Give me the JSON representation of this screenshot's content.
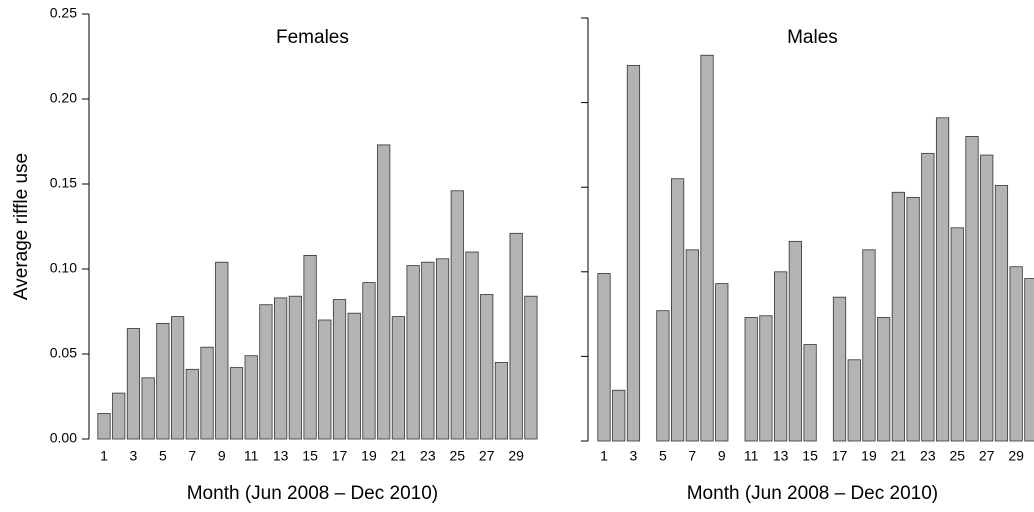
{
  "chart_data": [
    {
      "type": "bar",
      "title": "Females",
      "ylabel": "Average riffle use",
      "xlabel": "Month (Jun 2008 – Dec 2010)",
      "categories": [
        "1",
        null,
        "3",
        null,
        "5",
        null,
        "7",
        null,
        "9",
        null,
        "11",
        null,
        "13",
        null,
        "15",
        null,
        "17",
        null,
        "19",
        null,
        "21",
        null,
        "23",
        null,
        "25",
        null,
        "27",
        null,
        "29",
        null
      ],
      "values": [
        0.015,
        0.027,
        0.065,
        0.036,
        0.068,
        0.072,
        0.041,
        0.054,
        0.104,
        0.042,
        0.049,
        0.079,
        0.083,
        0.084,
        0.108,
        0.07,
        0.082,
        0.074,
        0.092,
        0.173,
        0.072,
        0.102,
        0.104,
        0.106,
        0.146,
        0.11,
        0.085,
        0.045,
        0.121,
        0.084
      ],
      "color": "#b3b3b3",
      "ylim": [
        0,
        0.25
      ],
      "yticks": [
        {
          "value": 0,
          "label": "0.00"
        },
        0.05,
        {
          "value": 0.1,
          "label": "0.10"
        },
        0.15,
        {
          "value": 0.2,
          "label": "0.20"
        },
        0.25
      ],
      "ytick_labels": true
    },
    {
      "type": "bar",
      "title": "Males",
      "xlabel": "Month (Jun 2008 – Dec 2010)",
      "categories": [
        "1",
        null,
        "3",
        null,
        "5",
        null,
        "7",
        null,
        "9",
        null,
        "11",
        null,
        "13",
        null,
        "15",
        null,
        "17",
        null,
        "19",
        null,
        "21",
        null,
        "23",
        null,
        "25",
        null,
        "27",
        null,
        "29",
        null
      ],
      "values": [
        0.099,
        0.03,
        0.222,
        0,
        0.077,
        0.155,
        0.113,
        0.228,
        0.093,
        0,
        0.073,
        0.074,
        0.1,
        0.118,
        0.057,
        0,
        0.085,
        0.048,
        0.113,
        0.073,
        0.147,
        0.144,
        0.17,
        0.191,
        0.126,
        0.18,
        0.169,
        0.151,
        0.103,
        0.096
      ],
      "color": "#b3b3b3",
      "ylim": [
        0,
        0.25
      ],
      "yticks": [
        0,
        0.05,
        0.1,
        0.15,
        0.2,
        0.25
      ],
      "ytick_labels": false
    }
  ]
}
